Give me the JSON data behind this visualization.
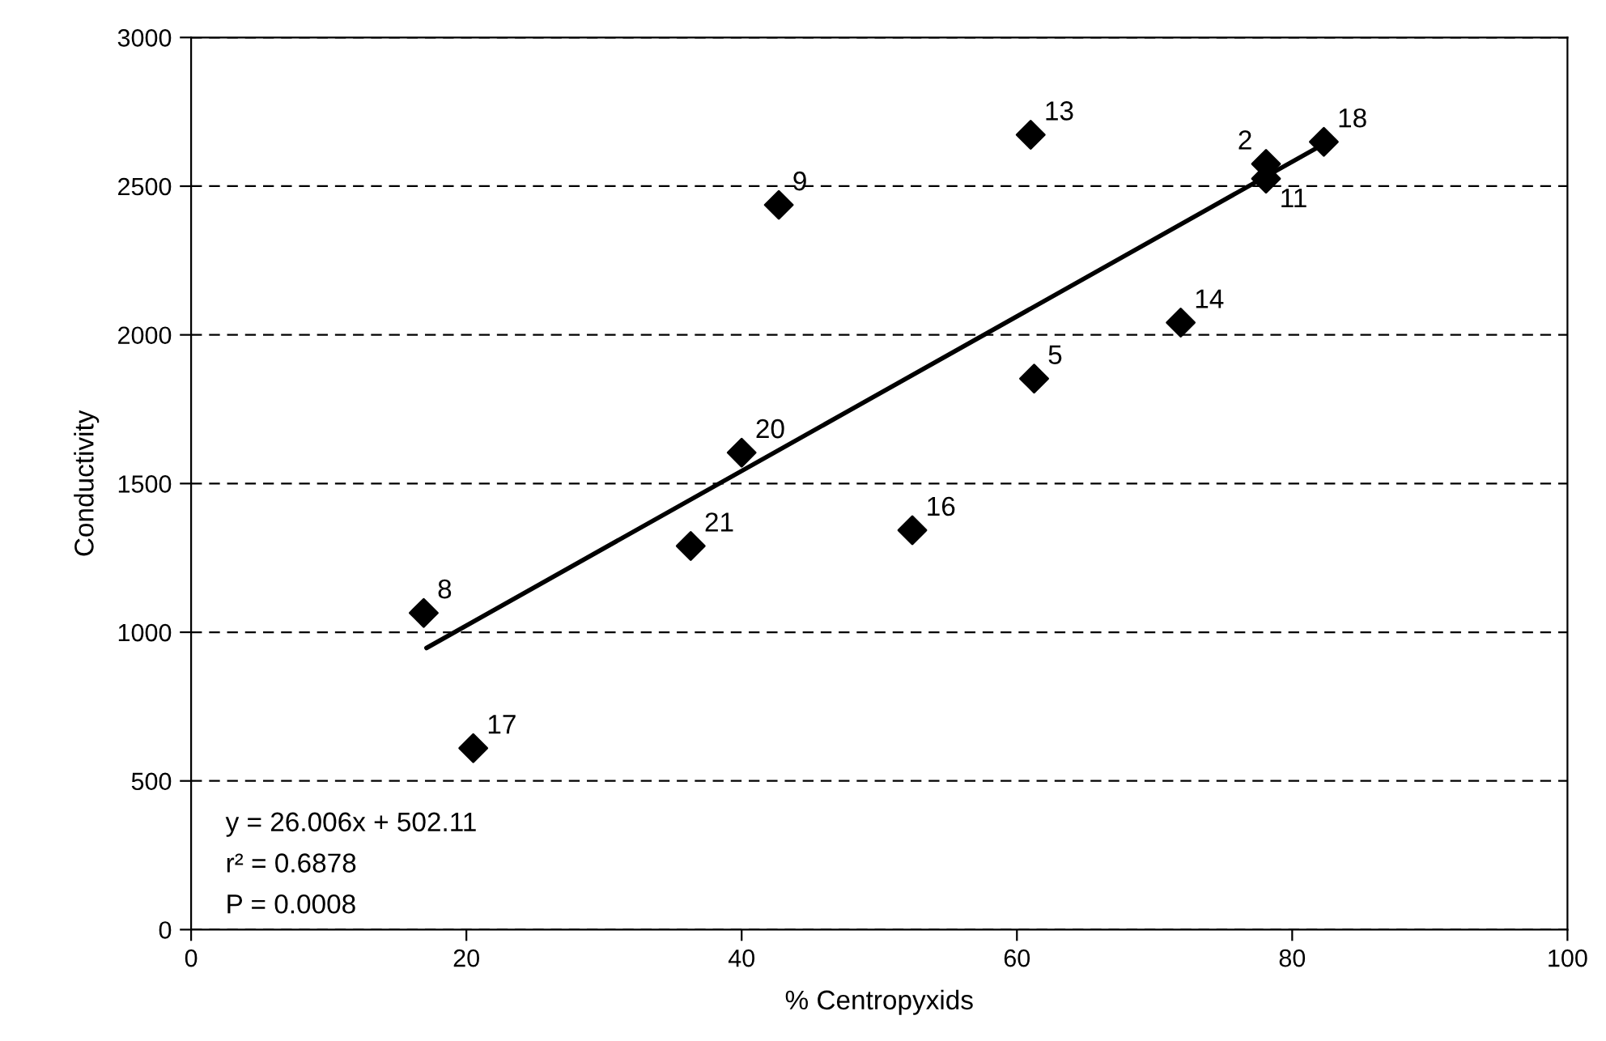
{
  "chart_data": {
    "type": "scatter",
    "xlabel": "% Centropyxids",
    "ylabel": "Conductivity",
    "xlim": [
      0,
      100
    ],
    "xticks": [
      0,
      20,
      40,
      60,
      80,
      100
    ],
    "ylim": [
      0,
      3000
    ],
    "yticks": [
      0,
      500,
      1000,
      1500,
      2000,
      2500,
      3000
    ],
    "grid": "y",
    "marker": "diamond",
    "series": [
      {
        "color": "#000000",
        "x": [
          42.7,
          40.0,
          36.3,
          16.9,
          20.5,
          61.0,
          78.1,
          78.1,
          82.3,
          71.9,
          61.25,
          52.4
        ],
        "values": [
          2437,
          1604,
          1290,
          1065,
          610,
          2673,
          2575,
          2525,
          2649,
          2041,
          1853,
          1343
        ]
      },
      {
        "type": "line",
        "color": "#000000",
        "marker": "none",
        "line_style": "solid",
        "x": [
          17.1,
          82.3
        ],
        "values": [
          947,
          2642
        ]
      }
    ],
    "annotations": [
      {
        "text": "9",
        "x": 42.7,
        "y": 2437
      },
      {
        "text": "20",
        "x": 40.0,
        "y": 1604
      },
      {
        "text": "21",
        "x": 36.3,
        "y": 1290
      },
      {
        "text": "8",
        "x": 16.9,
        "y": 1065
      },
      {
        "text": "17",
        "x": 20.5,
        "y": 610
      },
      {
        "text": "13",
        "x": 61.0,
        "y": 2673
      },
      {
        "text": "2",
        "x": 78.1,
        "y": 2575
      },
      {
        "text": "11",
        "x": 78.1,
        "y": 2525
      },
      {
        "text": "18",
        "x": 82.3,
        "y": 2649
      },
      {
        "text": "14",
        "x": 71.9,
        "y": 2041
      },
      {
        "text": "5",
        "x": 61.25,
        "y": 1853
      },
      {
        "text": "16",
        "x": 52.4,
        "y": 1343
      },
      "y = 26.006x + 502.11",
      "r² = 0.6878",
      "P = 0.0008"
    ]
  }
}
